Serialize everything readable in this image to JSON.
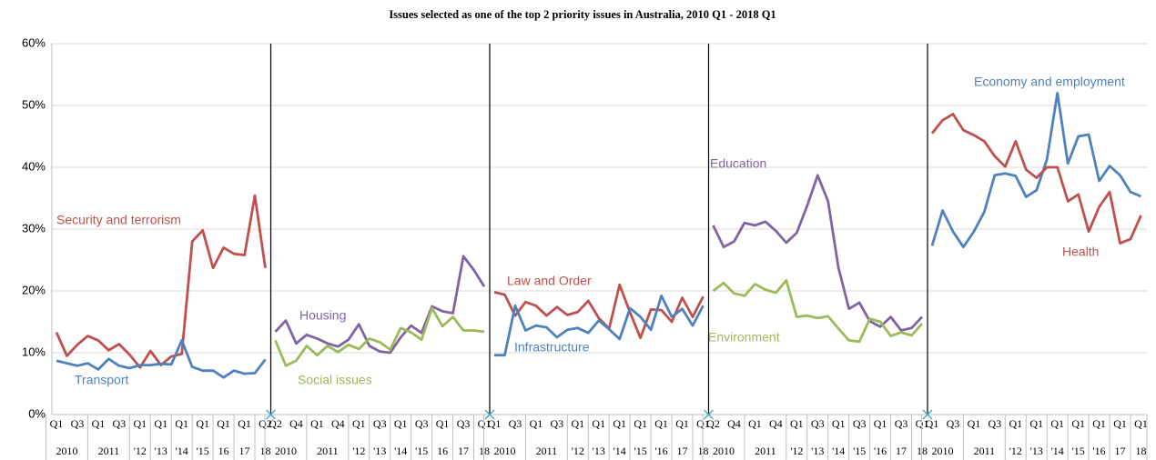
{
  "chart_data": {
    "type": "line",
    "title": "Issues selected as one of the top 2 priority issues in Australia, 2010 Q1 - 2018 Q1",
    "ylim": [
      0,
      60
    ],
    "yticks": [
      {
        "value": 0,
        "label": "0%"
      },
      {
        "value": 10,
        "label": "10%"
      },
      {
        "value": 20,
        "label": "20%"
      },
      {
        "value": 30,
        "label": "30%"
      },
      {
        "value": 40,
        "label": "40%"
      },
      {
        "value": 50,
        "label": "50%"
      },
      {
        "value": 60,
        "label": "60%"
      }
    ],
    "grid": true,
    "panels": [
      {
        "categories": [
          "Q1",
          null,
          "Q3",
          null,
          "Q1",
          null,
          "Q3",
          null,
          "Q1",
          null,
          "Q1",
          null,
          "Q1",
          null,
          "Q1",
          null,
          "Q1",
          null,
          "Q1",
          null,
          "Q2"
        ],
        "years": [
          "2010",
          "2011",
          "'12",
          "'13",
          "'14",
          "'15",
          "16",
          "17",
          "18"
        ],
        "series": [
          {
            "name": "Security and terrorism",
            "color": "#c0504d",
            "values": [
              13.3,
              9.5,
              11.3,
              12.7,
              12.0,
              10.4,
              11.4,
              9.7,
              7.6,
              10.3,
              8.0,
              9.4,
              9.8,
              28.0,
              29.8,
              23.7,
              27.0,
              26.0,
              25.8,
              35.4,
              23.7
            ]
          },
          {
            "name": "Transport",
            "color": "#4f81bd",
            "values": [
              8.7,
              8.3,
              7.9,
              8.3,
              7.3,
              9.0,
              7.9,
              7.5,
              8.0,
              8.0,
              8.2,
              8.1,
              12.0,
              7.7,
              7.1,
              7.1,
              6.0,
              7.1,
              6.6,
              6.7,
              8.9
            ]
          }
        ]
      },
      {
        "categories": [
          "Q2",
          null,
          "Q4",
          null,
          "Q1",
          null,
          "Q4",
          null,
          "Q1",
          null,
          "Q3",
          null,
          "Q1",
          null,
          "Q3",
          null,
          "Q1",
          null,
          "Q3",
          null,
          "Q1"
        ],
        "years": [
          "2010",
          "2011",
          "'12",
          "'13",
          "'14",
          "'15",
          "16",
          "17",
          "18"
        ],
        "series": [
          {
            "name": "Housing",
            "color": "#8064a2",
            "values": [
              13.4,
              15.2,
              11.5,
              12.9,
              12.3,
              11.5,
              11.0,
              12.1,
              14.6,
              11.1,
              10.2,
              10.0,
              12.5,
              14.4,
              13.2,
              17.5,
              16.7,
              16.4,
              25.6,
              23.4,
              20.7
            ]
          },
          {
            "name": "Social issues",
            "color": "#9bbb59",
            "values": [
              12.0,
              7.9,
              8.7,
              11.1,
              9.6,
              11.1,
              10.1,
              11.3,
              10.6,
              12.3,
              11.7,
              10.5,
              14.0,
              13.3,
              12.1,
              17.2,
              14.3,
              15.8,
              13.6,
              13.6,
              13.4
            ]
          }
        ]
      },
      {
        "categories": [
          "Q1",
          null,
          "Q3",
          null,
          "Q1",
          null,
          "Q3",
          null,
          "Q1",
          null,
          "Q1",
          null,
          "Q1",
          null,
          "Q1",
          null,
          "Q1",
          null,
          "Q1",
          null,
          "Q1"
        ],
        "years": [
          "2010",
          "2011",
          "'12",
          "'13",
          "'14",
          "'15",
          "'16",
          "17",
          "18"
        ],
        "series": [
          {
            "name": "Law and Order",
            "color": "#c0504d",
            "values": [
              19.8,
              19.4,
              16.0,
              18.2,
              17.6,
              16.0,
              17.4,
              16.1,
              16.6,
              18.4,
              15.6,
              13.9,
              21.0,
              16.5,
              12.4,
              17.0,
              16.9,
              15.0,
              18.9,
              15.8,
              19.1
            ]
          },
          {
            "name": "Infrastructure",
            "color": "#4f81bd",
            "values": [
              9.6,
              9.6,
              17.6,
              13.6,
              14.4,
              14.1,
              12.5,
              13.7,
              14.0,
              13.2,
              15.2,
              13.8,
              12.2,
              17.2,
              15.8,
              13.7,
              19.2,
              15.8,
              17.1,
              14.4,
              17.6
            ]
          }
        ]
      },
      {
        "categories": [
          "Q2",
          null,
          "Q4",
          null,
          "Q1",
          null,
          "Q4",
          null,
          "Q1",
          null,
          "Q3",
          null,
          "Q1",
          null,
          "Q3",
          null,
          "Q1",
          null,
          "Q3",
          null,
          "Q1"
        ],
        "years": [
          "2010",
          "2011",
          "'12",
          "'13",
          "'14",
          "'15",
          "'16",
          "17",
          "18"
        ],
        "series": [
          {
            "name": "Education",
            "color": "#8064a2",
            "values": [
              30.6,
              27.1,
              28.0,
              31.0,
              30.6,
              31.2,
              29.7,
              27.8,
              29.4,
              33.8,
              38.7,
              34.5,
              23.7,
              17.1,
              18.1,
              15.1,
              14.2,
              15.8,
              13.6,
              14.0,
              15.8
            ]
          },
          {
            "name": "Environment",
            "color": "#9bbb59",
            "values": [
              20.0,
              21.3,
              19.6,
              19.2,
              21.1,
              20.2,
              19.7,
              21.7,
              15.8,
              16.0,
              15.6,
              15.9,
              13.9,
              12.0,
              11.8,
              15.5,
              15.0,
              12.7,
              13.3,
              12.8,
              14.7
            ]
          }
        ]
      },
      {
        "categories": [
          "Q1",
          null,
          "Q3",
          null,
          "Q1",
          null,
          "Q3",
          null,
          "Q1",
          null,
          "Q1",
          null,
          "Q1",
          null,
          "Q1",
          null,
          "Q1",
          null,
          "Q1",
          null,
          "Q1"
        ],
        "years": [
          "2010",
          "2011",
          "'12",
          "'13",
          "'14",
          "'15",
          "'16",
          "17",
          "18"
        ],
        "series": [
          {
            "name": "Economy and employment",
            "color": "#4f81bd",
            "values": [
              27.3,
              33.0,
              29.6,
              27.1,
              29.6,
              32.8,
              38.7,
              39.0,
              38.6,
              35.2,
              36.3,
              41.3,
              52.0,
              40.6,
              45.0,
              45.3,
              37.8,
              40.2,
              38.7,
              36.0,
              35.3
            ]
          },
          {
            "name": "Health",
            "color": "#c0504d",
            "values": [
              45.5,
              47.6,
              48.6,
              46.0,
              45.2,
              44.2,
              41.8,
              40.1,
              44.2,
              39.6,
              38.3,
              40.0,
              40.0,
              34.5,
              35.6,
              29.6,
              33.6,
              36.0,
              27.7,
              28.4,
              32.2
            ]
          }
        ]
      }
    ]
  }
}
